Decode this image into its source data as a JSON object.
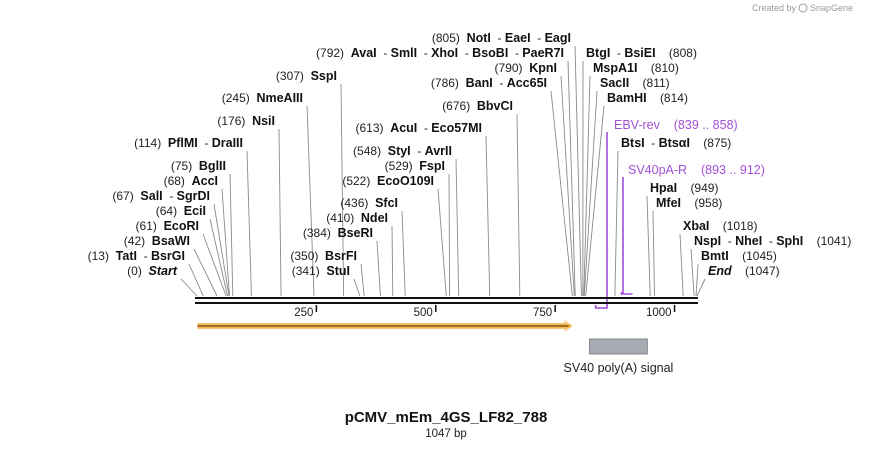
{
  "watermark": {
    "prefix": "Created by",
    "brand": "SnapGene"
  },
  "sequence": {
    "name": "pCMV_mEm_4GS_LF82_788",
    "length_label": "1047 bp",
    "length": 1047
  },
  "axis_ticks": [
    {
      "value": 250,
      "label": "250"
    },
    {
      "value": 500,
      "label": "500"
    },
    {
      "value": 750,
      "label": "750"
    },
    {
      "value": 1000,
      "label": "1000"
    }
  ],
  "sites": [
    {
      "pos": 0,
      "pos_label": "(0)",
      "names": [
        "Start"
      ],
      "italic": true,
      "side": "left"
    },
    {
      "pos": 13,
      "pos_label": "(13)",
      "names": [
        "TatI",
        "BsrGI"
      ],
      "side": "left"
    },
    {
      "pos": 42,
      "pos_label": "(42)",
      "names": [
        "BsaWI"
      ],
      "side": "left"
    },
    {
      "pos": 61,
      "pos_label": "(61)",
      "names": [
        "EcoRI"
      ],
      "side": "left"
    },
    {
      "pos": 64,
      "pos_label": "(64)",
      "names": [
        "EciI"
      ],
      "side": "left"
    },
    {
      "pos": 67,
      "pos_label": "(67)",
      "names": [
        "SalI",
        "SgrDI"
      ],
      "side": "left"
    },
    {
      "pos": 68,
      "pos_label": "(68)",
      "names": [
        "AccI"
      ],
      "side": "left"
    },
    {
      "pos": 75,
      "pos_label": "(75)",
      "names": [
        "BglII"
      ],
      "side": "left"
    },
    {
      "pos": 114,
      "pos_label": "(114)",
      "names": [
        "PflMI",
        "DraIII"
      ],
      "side": "left"
    },
    {
      "pos": 176,
      "pos_label": "(176)",
      "names": [
        "NsiI"
      ],
      "side": "left"
    },
    {
      "pos": 245,
      "pos_label": "(245)",
      "names": [
        "NmeAIII"
      ],
      "side": "left"
    },
    {
      "pos": 307,
      "pos_label": "(307)",
      "names": [
        "SspI"
      ],
      "side": "left"
    },
    {
      "pos": 341,
      "pos_label": "(341)",
      "names": [
        "StuI"
      ],
      "side": "left"
    },
    {
      "pos": 350,
      "pos_label": "(350)",
      "names": [
        "BsrFI"
      ],
      "side": "left"
    },
    {
      "pos": 384,
      "pos_label": "(384)",
      "names": [
        "BseRI"
      ],
      "side": "left"
    },
    {
      "pos": 410,
      "pos_label": "(410)",
      "names": [
        "NdeI"
      ],
      "side": "left"
    },
    {
      "pos": 436,
      "pos_label": "(436)",
      "names": [
        "SfcI"
      ],
      "side": "left"
    },
    {
      "pos": 522,
      "pos_label": "(522)",
      "names": [
        "EcoO109I"
      ],
      "side": "left"
    },
    {
      "pos": 529,
      "pos_label": "(529)",
      "names": [
        "FspI"
      ],
      "side": "left"
    },
    {
      "pos": 548,
      "pos_label": "(548)",
      "names": [
        "StyI",
        "AvrII"
      ],
      "side": "left"
    },
    {
      "pos": 613,
      "pos_label": "(613)",
      "names": [
        "AcuI",
        "Eco57MI"
      ],
      "side": "left"
    },
    {
      "pos": 676,
      "pos_label": "(676)",
      "names": [
        "BbvCI"
      ],
      "side": "left"
    },
    {
      "pos": 786,
      "pos_label": "(786)",
      "names": [
        "BanI",
        "Acc65I"
      ],
      "side": "left"
    },
    {
      "pos": 790,
      "pos_label": "(790)",
      "names": [
        "KpnI"
      ],
      "side": "left"
    },
    {
      "pos": 792,
      "pos_label": "(792)",
      "names": [
        "AvaI",
        "SmlI",
        "XhoI",
        "BsoBI",
        "PaeR7I"
      ],
      "side": "left"
    },
    {
      "pos": 805,
      "pos_label": "(805)",
      "names": [
        "NotI",
        "EaeI",
        "EagI"
      ],
      "side": "left"
    },
    {
      "pos": 808,
      "pos_label": "(808)",
      "names": [
        "BtgI",
        "BsiEI"
      ],
      "side": "right"
    },
    {
      "pos": 810,
      "pos_label": "(810)",
      "names": [
        "MspA1I"
      ],
      "side": "right"
    },
    {
      "pos": 811,
      "pos_label": "(811)",
      "names": [
        "SacII"
      ],
      "side": "right"
    },
    {
      "pos": 814,
      "pos_label": "(814)",
      "names": [
        "BamHI"
      ],
      "side": "right"
    },
    {
      "pos": 875,
      "pos_label": "(875)",
      "names": [
        "BtsI",
        "BtsαI"
      ],
      "side": "right"
    },
    {
      "pos": 949,
      "pos_label": "(949)",
      "names": [
        "HpaI"
      ],
      "side": "right"
    },
    {
      "pos": 958,
      "pos_label": "(958)",
      "names": [
        "MfeI"
      ],
      "side": "right"
    },
    {
      "pos": 1018,
      "pos_label": "(1018)",
      "names": [
        "XbaI"
      ],
      "side": "right"
    },
    {
      "pos": 1041,
      "pos_label": "(1041)",
      "names": [
        "NspI",
        "NheI",
        "SphI"
      ],
      "side": "right"
    },
    {
      "pos": 1045,
      "pos_label": "(1045)",
      "names": [
        "BmtI"
      ],
      "side": "right"
    },
    {
      "pos": 1047,
      "pos_label": "(1047)",
      "names": [
        "End"
      ],
      "italic": true,
      "side": "right"
    }
  ],
  "primers": [
    {
      "name": "EBV-rev",
      "range": "(839 .. 858)",
      "start": 839,
      "end": 858,
      "direction": "reverse"
    },
    {
      "name": "SV40pA-R",
      "range": "(893 .. 912)",
      "start": 893,
      "end": 912,
      "direction": "reverse"
    }
  ],
  "features": [
    {
      "name": "SV40 poly(A) signal",
      "start": 822,
      "end": 943,
      "color": "#a7abb2",
      "label_visible": true
    },
    {
      "name": "orf",
      "start": 1,
      "end": 786,
      "color": "#f3a736",
      "arrow": "forward",
      "label_visible": false
    }
  ],
  "colors": {
    "primer": "#a24fd8",
    "backbone": "#111111"
  }
}
